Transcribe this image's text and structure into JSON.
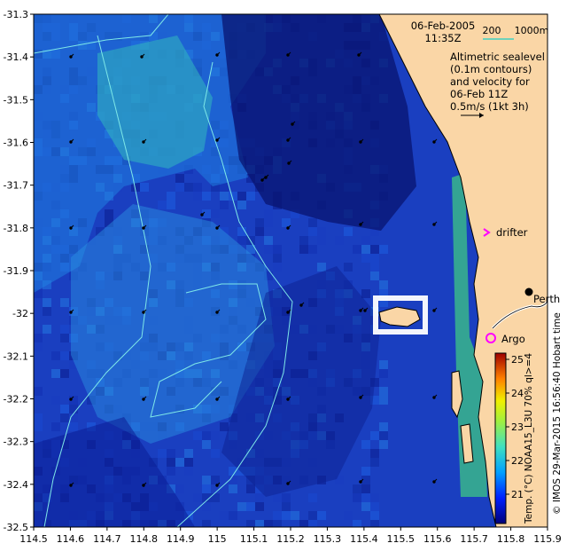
{
  "header": {
    "date": "06-Feb-2005",
    "time": "11:35Z",
    "scale_labels": [
      "200",
      "1000m"
    ],
    "legend_lines": [
      "Altimetric sealevel",
      "(0.1m contours)",
      "and velocity for",
      "06-Feb 11Z",
      "0.5m/s (1kt 3h)"
    ]
  },
  "map": {
    "x_ticks": [
      "114.5",
      "114.6",
      "114.7",
      "114.8",
      "114.9",
      "115",
      "115.1",
      "115.2",
      "115.3",
      "115.4",
      "115.5",
      "115.6",
      "115.7",
      "115.8",
      "115.9"
    ],
    "y_ticks": [
      "-31.3",
      "-31.4",
      "-31.5",
      "-31.6",
      "-31.7",
      "-31.8",
      "-31.9",
      "-32",
      "-32.1",
      "-32.2",
      "-32.3",
      "-32.4",
      "-32.5"
    ],
    "xlim": [
      114.5,
      115.9
    ],
    "ylim": [
      -32.5,
      -31.3
    ]
  },
  "labels": {
    "drifter": "drifter",
    "argo": "Argo",
    "city": "Perth"
  },
  "colorbar": {
    "ticks": [
      "25",
      "24",
      "23",
      "22",
      "21"
    ],
    "title": "Temp. (°C) NOAA15_L3U 70% ql>=4",
    "credit": "© IMOS 29-Mar-2015 16:56:40 Hobart time"
  },
  "colors": {
    "land": "#fad6a6",
    "sst_dark": "#0a1a8a",
    "sst_mid": "#1c4fd0",
    "sst_light": "#2a8ee0",
    "sst_warm": "#40c0b0",
    "contour": "#7ee8e8",
    "drifter": "#ff00ff",
    "argo": "#ff00ff"
  }
}
